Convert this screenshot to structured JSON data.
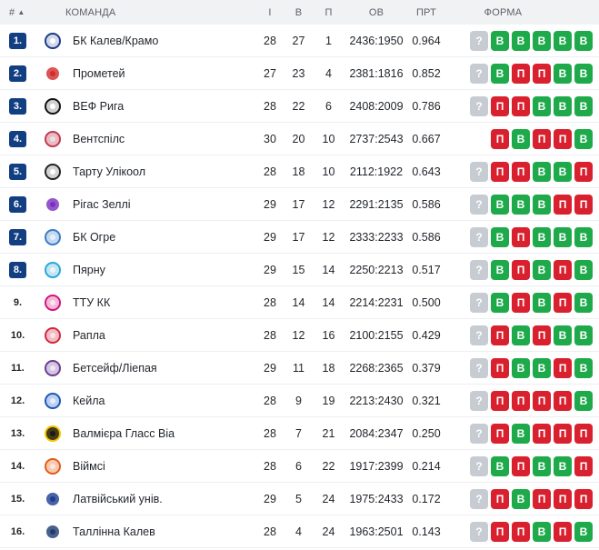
{
  "header": {
    "rank": "#",
    "team": "КОМАНДА",
    "games": "І",
    "wins": "В",
    "losses": "П",
    "points": "ОВ",
    "pct": "ПРТ",
    "form": "ФОРМА"
  },
  "colors": {
    "win": "#1eaa4b",
    "loss": "#d9202e",
    "unknown": "#c7ccd2",
    "top_rank": "#123f82"
  },
  "rows": [
    {
      "rank": "1.",
      "team": "БК Калев/Крамо",
      "logo": "kalev-logo",
      "g": "28",
      "w": "27",
      "l": "1",
      "ov": "2436:1950",
      "pct": "0.964",
      "form": [
        "?",
        "В",
        "В",
        "В",
        "В",
        "В"
      ]
    },
    {
      "rank": "2.",
      "team": "Прометей",
      "logo": "prometey-logo",
      "g": "27",
      "w": "23",
      "l": "4",
      "ov": "2381:1816",
      "pct": "0.852",
      "form": [
        "?",
        "В",
        "П",
        "П",
        "В",
        "В"
      ]
    },
    {
      "rank": "3.",
      "team": "ВЕФ Рига",
      "logo": "vef-logo",
      "g": "28",
      "w": "22",
      "l": "6",
      "ov": "2408:2009",
      "pct": "0.786",
      "form": [
        "?",
        "П",
        "П",
        "В",
        "В",
        "В"
      ]
    },
    {
      "rank": "4.",
      "team": "Вентспілс",
      "logo": "ventspils-logo",
      "g": "30",
      "w": "20",
      "l": "10",
      "ov": "2737:2543",
      "pct": "0.667",
      "form": [
        "П",
        "В",
        "П",
        "П",
        "В"
      ]
    },
    {
      "rank": "5.",
      "team": "Тарту Улікоол",
      "logo": "tartu-logo",
      "g": "28",
      "w": "18",
      "l": "10",
      "ov": "2112:1922",
      "pct": "0.643",
      "form": [
        "?",
        "П",
        "П",
        "В",
        "В",
        "П"
      ]
    },
    {
      "rank": "6.",
      "team": "Рігас Зеллі",
      "logo": "rigas-zelli-logo",
      "g": "29",
      "w": "17",
      "l": "12",
      "ov": "2291:2135",
      "pct": "0.586",
      "form": [
        "?",
        "В",
        "В",
        "В",
        "П",
        "П"
      ]
    },
    {
      "rank": "7.",
      "team": "БК Огре",
      "logo": "ogre-logo",
      "g": "29",
      "w": "17",
      "l": "12",
      "ov": "2333:2233",
      "pct": "0.586",
      "form": [
        "?",
        "В",
        "П",
        "В",
        "В",
        "В"
      ]
    },
    {
      "rank": "8.",
      "team": "Пярну",
      "logo": "parnu-logo",
      "g": "29",
      "w": "15",
      "l": "14",
      "ov": "2250:2213",
      "pct": "0.517",
      "form": [
        "?",
        "В",
        "П",
        "В",
        "П",
        "В"
      ]
    },
    {
      "rank": "9.",
      "team": "ТТУ КК",
      "logo": "ttu-logo",
      "g": "28",
      "w": "14",
      "l": "14",
      "ov": "2214:2231",
      "pct": "0.500",
      "form": [
        "?",
        "В",
        "П",
        "В",
        "П",
        "В"
      ]
    },
    {
      "rank": "10.",
      "team": "Рапла",
      "logo": "rapla-logo",
      "g": "28",
      "w": "12",
      "l": "16",
      "ov": "2100:2155",
      "pct": "0.429",
      "form": [
        "?",
        "П",
        "В",
        "П",
        "В",
        "В"
      ]
    },
    {
      "rank": "11.",
      "team": "Бетсейф/Ліепая",
      "logo": "liepaja-logo",
      "g": "29",
      "w": "11",
      "l": "18",
      "ov": "2268:2365",
      "pct": "0.379",
      "form": [
        "?",
        "П",
        "В",
        "В",
        "П",
        "В"
      ]
    },
    {
      "rank": "12.",
      "team": "Кейла",
      "logo": "keila-logo",
      "g": "28",
      "w": "9",
      "l": "19",
      "ov": "2213:2430",
      "pct": "0.321",
      "form": [
        "?",
        "П",
        "П",
        "П",
        "П",
        "В"
      ]
    },
    {
      "rank": "13.",
      "team": "Валмієра Гласс Віа",
      "logo": "valmiera-logo",
      "g": "28",
      "w": "7",
      "l": "21",
      "ov": "2084:2347",
      "pct": "0.250",
      "form": [
        "?",
        "П",
        "В",
        "П",
        "П",
        "П"
      ]
    },
    {
      "rank": "14.",
      "team": "Віймсі",
      "logo": "viimsi-logo",
      "g": "28",
      "w": "6",
      "l": "22",
      "ov": "1917:2399",
      "pct": "0.214",
      "form": [
        "?",
        "В",
        "П",
        "В",
        "В",
        "П"
      ]
    },
    {
      "rank": "15.",
      "team": "Латвійський унів.",
      "logo": "lu-logo",
      "g": "29",
      "w": "5",
      "l": "24",
      "ov": "1975:2433",
      "pct": "0.172",
      "form": [
        "?",
        "П",
        "В",
        "П",
        "П",
        "П"
      ]
    },
    {
      "rank": "16.",
      "team": "Таллінна Калев",
      "logo": "tallinna-kalev-logo",
      "g": "28",
      "w": "4",
      "l": "24",
      "ov": "1963:2501",
      "pct": "0.143",
      "form": [
        "?",
        "П",
        "П",
        "В",
        "П",
        "В"
      ]
    }
  ]
}
